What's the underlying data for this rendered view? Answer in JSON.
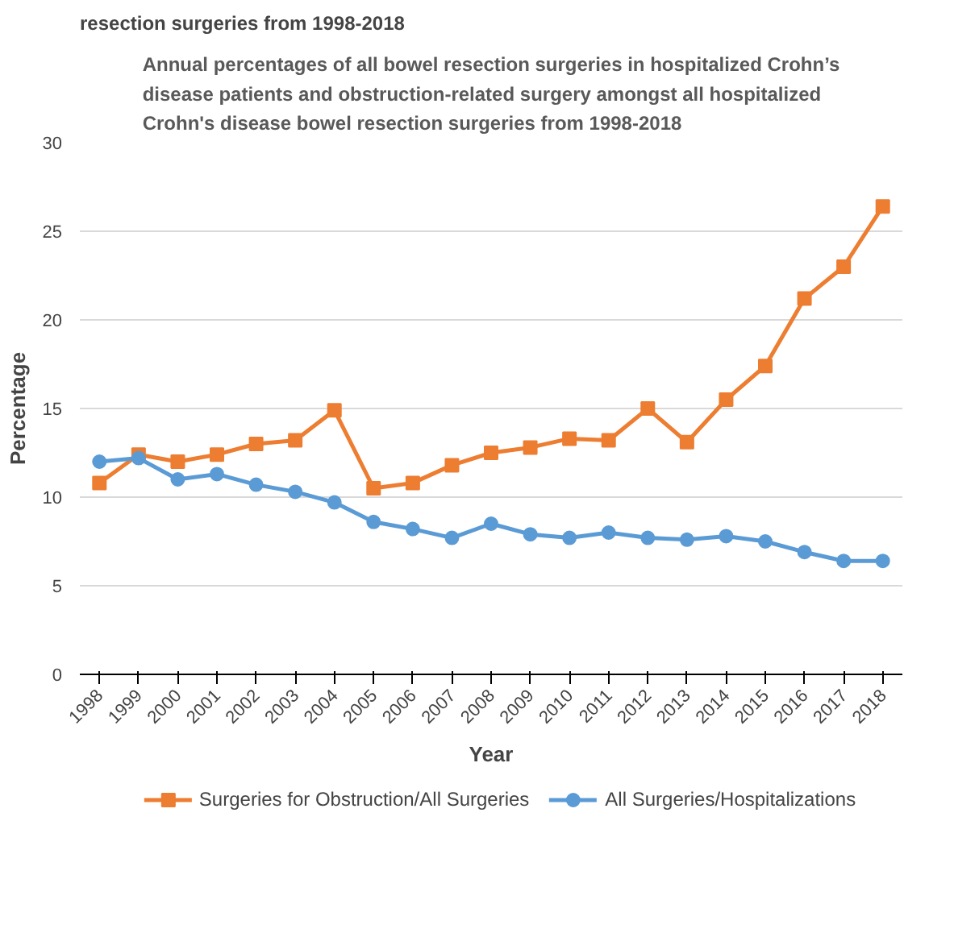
{
  "chart_data": {
    "type": "line",
    "title": "Annual percentages of all bowel resection surgeries in hospitalized Crohn’s\ndisease patients and obstruction-related surgery amongst all hospitalized\nCrohn's disease bowel resection surgeries from 1998-2018",
    "annotations": [
      "resection surgeries from 1998-2018"
    ],
    "xlabel": "Year",
    "ylabel": "Percentage",
    "categories": [
      "1998",
      "1999",
      "2000",
      "2001",
      "2002",
      "2003",
      "2004",
      "2005",
      "2006",
      "2007",
      "2008",
      "2009",
      "2010",
      "2011",
      "2012",
      "2013",
      "2014",
      "2015",
      "2016",
      "2017",
      "2018"
    ],
    "series": [
      {
        "name": "Surgeries for Obstruction/All Surgeries",
        "color": "#ed7d31",
        "marker": "square",
        "values": [
          10.8,
          12.4,
          12.0,
          12.4,
          13.0,
          13.2,
          14.9,
          10.5,
          10.8,
          11.8,
          12.5,
          12.8,
          13.3,
          13.2,
          15.0,
          13.1,
          15.5,
          17.4,
          21.2,
          23.0,
          26.4
        ]
      },
      {
        "name": "All Surgeries/Hospitalizations",
        "color": "#5b9bd5",
        "marker": "circle",
        "values": [
          12.0,
          12.2,
          11.0,
          11.3,
          10.7,
          10.3,
          9.7,
          8.6,
          8.2,
          7.7,
          8.5,
          7.9,
          7.7,
          8.0,
          7.7,
          7.6,
          7.8,
          7.5,
          6.9,
          6.4,
          6.4
        ]
      }
    ],
    "ylim": [
      0,
      30
    ],
    "yticks": [
      0,
      5,
      10,
      15,
      20,
      25,
      30
    ],
    "grid": "y",
    "legend": "bottom",
    "line_style": "solid"
  }
}
